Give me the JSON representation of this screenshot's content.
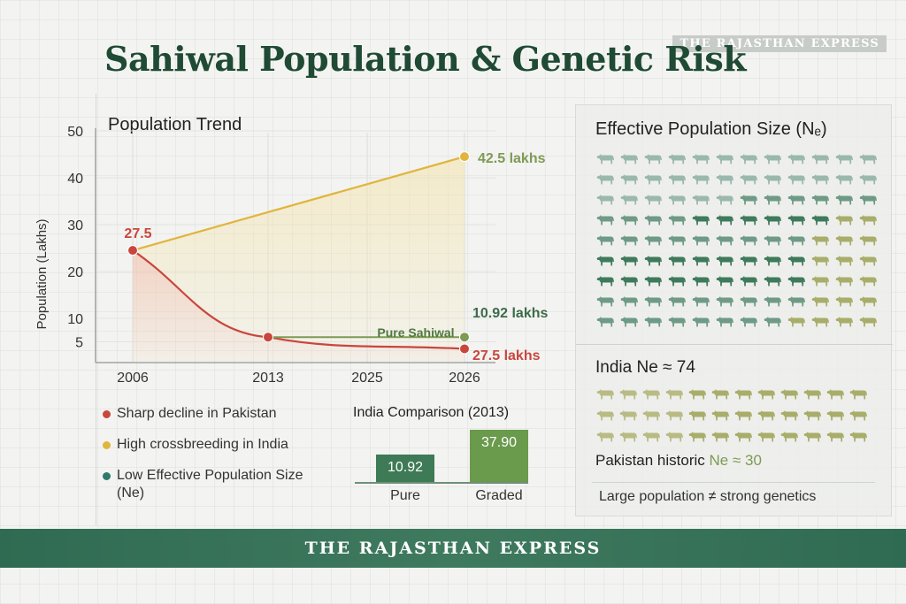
{
  "brand": {
    "top_label": "THE RAJASTHAN EXPRESS",
    "footer_label": "THE RAJASTHAN EXPRESS"
  },
  "title": "Sahiwal Population & Genetic Risk",
  "trend": {
    "title": "Population Trend"
  },
  "chart_data": [
    {
      "type": "line",
      "title": "Population Trend",
      "ylabel": "Population (Lakhs)",
      "xlabel": "",
      "x_ticks": [
        "2006",
        "2013",
        "2025",
        "2026"
      ],
      "y_ticks": [
        5,
        10,
        20,
        30,
        40,
        50
      ],
      "ylim": [
        0,
        50
      ],
      "grid": true,
      "series": [
        {
          "color": "#e0b53c",
          "points": [
            {
              "x": "2006",
              "y": 24.5
            },
            {
              "x": "2026",
              "y": 44.5
            }
          ]
        },
        {
          "color": "#c9463d",
          "points": [
            {
              "x": "2006",
              "y": 24.5
            },
            {
              "x": "2013",
              "y": 6.0
            },
            {
              "x": "2026",
              "y": 3.5
            }
          ]
        },
        {
          "name": "Pure Sahiwal",
          "color": "#7e9a55",
          "points": [
            {
              "x": "2013",
              "y": 6.0
            },
            {
              "x": "2026",
              "y": 6.0
            }
          ]
        }
      ],
      "annotations": [
        "27.5",
        "42.5 lakhs",
        "10.92 lakhs",
        "27.5 lakhs",
        "Pure Sahiwal"
      ]
    },
    {
      "type": "bar",
      "title": "India Comparison (2013)",
      "categories": [
        "Pure",
        "Graded"
      ],
      "values": [
        10.92,
        37.9
      ],
      "value_labels": [
        "10.92",
        "37.90"
      ],
      "colors": [
        "#3d7a55",
        "#6a9a4c"
      ]
    }
  ],
  "legend": [
    {
      "label": "Sharp decline in Pakistan",
      "color": "#c9463d"
    },
    {
      "label": "High crossbreeding in India",
      "color": "#e0b53c"
    },
    {
      "label": "Low Effective Population Size (Ne)",
      "color": "#2f7a6a"
    }
  ],
  "ne_panel": {
    "title": "Effective Population Size (Nₑ)",
    "india_title": "India Ne ≈ 74",
    "pakistan_prefix": "Pakistan historic ",
    "pakistan_value": "Ne ≈ 30",
    "note": "Large population ≠ strong genetics",
    "colors": {
      "light_teal": "#9ab8ad",
      "mid_teal": "#6e9a86",
      "dark_green": "#3f7a5c",
      "olive": "#a8ad6a",
      "pale_olive": "#b9bb85"
    }
  }
}
